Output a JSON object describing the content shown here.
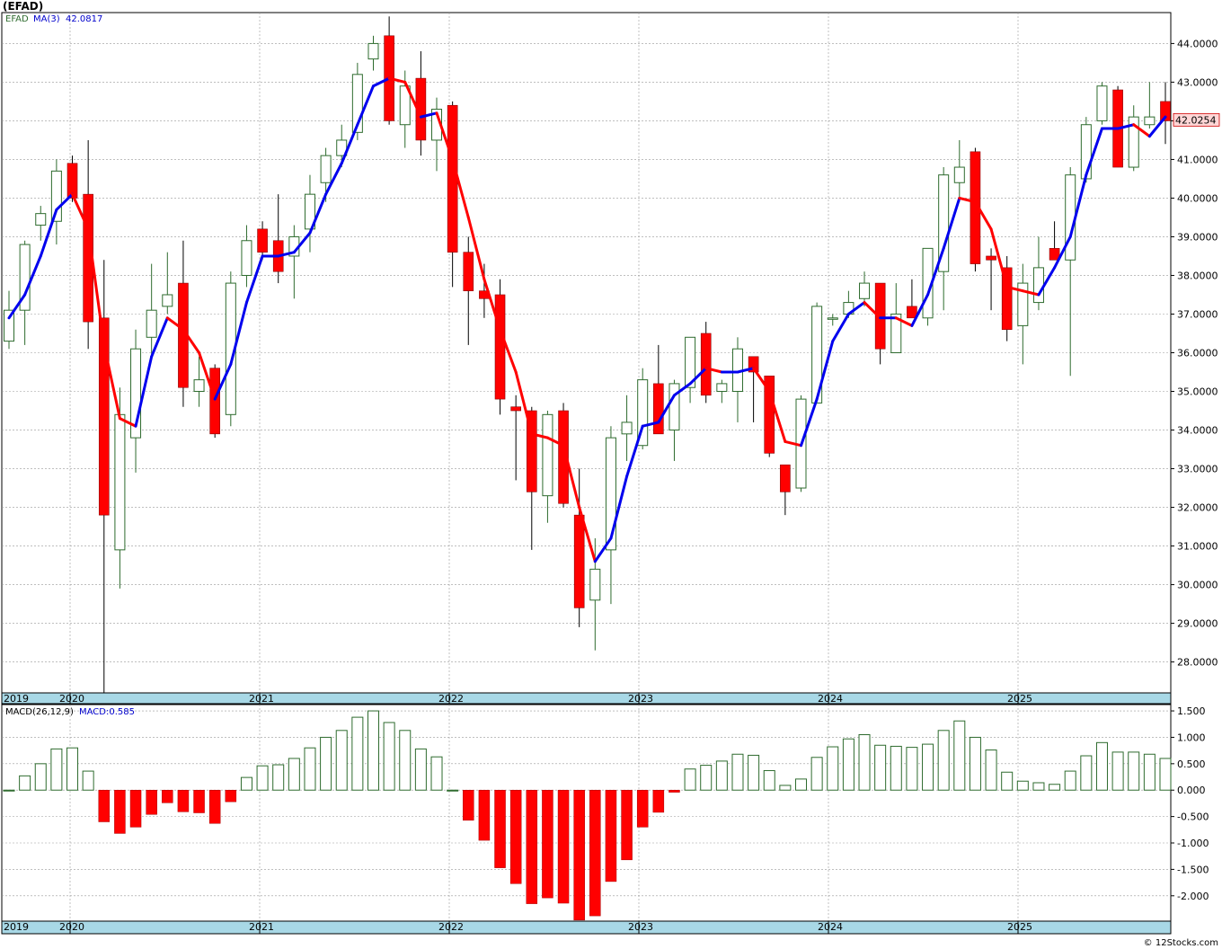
{
  "title": "(EFAD)",
  "price_panel": {
    "symbol": "EFAD",
    "ma_label": "MA(3)",
    "ma_value": "42.0817",
    "last_price": "42.0254"
  },
  "macd_panel": {
    "label": "MACD(26,12,9)",
    "value_label": "MACD:0.585"
  },
  "watermark": "© 12Stocks.com",
  "colors": {
    "up_candle_border": "#2e6b2e",
    "down_candle_fill": "#ff0000",
    "ma_rising": "#0000ee",
    "ma_falling": "#ff0000",
    "axis_band": "#a8d8e6",
    "grid": "#999999",
    "price_badge_bg": "#ffd6d6",
    "price_badge_text": "#cc0000"
  },
  "chart_data": [
    {
      "type": "candlestick",
      "ylim": [
        27.2,
        44.8
      ],
      "yticks": [
        {
          "value": 28,
          "label": "28.0000"
        },
        {
          "value": 29,
          "label": "29.0000"
        },
        {
          "value": 30,
          "label": "30.0000"
        },
        {
          "value": 31,
          "label": "31.0000"
        },
        {
          "value": 32,
          "label": "32.0000"
        },
        {
          "value": 33,
          "label": "33.0000"
        },
        {
          "value": 34,
          "label": "34.0000"
        },
        {
          "value": 35,
          "label": "35.0000"
        },
        {
          "value": 36,
          "label": "36.0000"
        },
        {
          "value": 37,
          "label": "37.0000"
        },
        {
          "value": 38,
          "label": "38.0000"
        },
        {
          "value": 39,
          "label": "39.0000"
        },
        {
          "value": 40,
          "label": "40.0000"
        },
        {
          "value": 41,
          "label": "41.0000"
        },
        {
          "value": 42,
          "label": "42.0000"
        },
        {
          "value": 43,
          "label": "43.0000"
        },
        {
          "value": 44,
          "label": "44.0000"
        }
      ],
      "years": [
        "2019",
        "2020",
        "2021",
        "2022",
        "2023",
        "2024",
        "2025"
      ],
      "candles": [
        {
          "o": 36.3,
          "h": 37.6,
          "l": 36.1,
          "c": 37.1
        },
        {
          "o": 37.1,
          "h": 38.9,
          "l": 36.2,
          "c": 38.8
        },
        {
          "o": 39.3,
          "h": 39.8,
          "l": 38.9,
          "c": 39.6
        },
        {
          "o": 39.4,
          "h": 41.0,
          "l": 38.8,
          "c": 40.7
        },
        {
          "o": 40.9,
          "h": 41.1,
          "l": 39.9,
          "c": 40.0
        },
        {
          "o": 40.1,
          "h": 41.5,
          "l": 36.1,
          "c": 36.8
        },
        {
          "o": 36.9,
          "h": 38.4,
          "l": 26.6,
          "c": 31.8
        },
        {
          "o": 30.9,
          "h": 35.1,
          "l": 29.9,
          "c": 34.4
        },
        {
          "o": 33.8,
          "h": 36.6,
          "l": 32.9,
          "c": 36.1
        },
        {
          "o": 36.4,
          "h": 38.3,
          "l": 35.9,
          "c": 37.1
        },
        {
          "o": 37.2,
          "h": 38.6,
          "l": 37.0,
          "c": 37.5
        },
        {
          "o": 37.8,
          "h": 38.9,
          "l": 34.6,
          "c": 35.1
        },
        {
          "o": 35.0,
          "h": 35.9,
          "l": 34.6,
          "c": 35.3
        },
        {
          "o": 35.6,
          "h": 35.7,
          "l": 33.8,
          "c": 33.9
        },
        {
          "o": 34.4,
          "h": 38.1,
          "l": 34.1,
          "c": 37.8
        },
        {
          "o": 38.0,
          "h": 39.3,
          "l": 37.7,
          "c": 38.9
        },
        {
          "o": 39.2,
          "h": 39.4,
          "l": 38.4,
          "c": 38.6
        },
        {
          "o": 38.9,
          "h": 40.1,
          "l": 37.8,
          "c": 38.1
        },
        {
          "o": 38.5,
          "h": 39.3,
          "l": 37.4,
          "c": 39.0
        },
        {
          "o": 39.2,
          "h": 40.6,
          "l": 38.6,
          "c": 40.1
        },
        {
          "o": 40.4,
          "h": 41.3,
          "l": 39.9,
          "c": 41.1
        },
        {
          "o": 41.1,
          "h": 41.9,
          "l": 40.8,
          "c": 41.5
        },
        {
          "o": 41.7,
          "h": 43.5,
          "l": 41.5,
          "c": 43.2
        },
        {
          "o": 43.6,
          "h": 44.2,
          "l": 43.3,
          "c": 44.0
        },
        {
          "o": 44.2,
          "h": 44.7,
          "l": 41.9,
          "c": 42.0
        },
        {
          "o": 41.9,
          "h": 43.3,
          "l": 41.3,
          "c": 42.9
        },
        {
          "o": 43.1,
          "h": 43.8,
          "l": 41.1,
          "c": 41.5
        },
        {
          "o": 41.5,
          "h": 42.6,
          "l": 40.7,
          "c": 42.3
        },
        {
          "o": 42.4,
          "h": 42.5,
          "l": 37.7,
          "c": 38.6
        },
        {
          "o": 38.6,
          "h": 39.0,
          "l": 36.2,
          "c": 37.6
        },
        {
          "o": 37.6,
          "h": 38.3,
          "l": 36.9,
          "c": 37.4
        },
        {
          "o": 37.5,
          "h": 37.9,
          "l": 34.4,
          "c": 34.8
        },
        {
          "o": 34.6,
          "h": 34.9,
          "l": 32.7,
          "c": 34.5
        },
        {
          "o": 34.5,
          "h": 34.6,
          "l": 30.9,
          "c": 32.4
        },
        {
          "o": 32.3,
          "h": 34.5,
          "l": 31.6,
          "c": 34.4
        },
        {
          "o": 34.5,
          "h": 34.7,
          "l": 32.0,
          "c": 32.1
        },
        {
          "o": 31.8,
          "h": 33.0,
          "l": 28.9,
          "c": 29.4
        },
        {
          "o": 29.6,
          "h": 31.2,
          "l": 28.3,
          "c": 30.4
        },
        {
          "o": 30.9,
          "h": 34.1,
          "l": 29.5,
          "c": 33.8
        },
        {
          "o": 33.9,
          "h": 34.9,
          "l": 33.2,
          "c": 34.2
        },
        {
          "o": 33.6,
          "h": 35.6,
          "l": 33.5,
          "c": 35.3
        },
        {
          "o": 35.2,
          "h": 36.2,
          "l": 33.9,
          "c": 33.9
        },
        {
          "o": 34.0,
          "h": 35.3,
          "l": 33.2,
          "c": 35.2
        },
        {
          "o": 35.1,
          "h": 36.4,
          "l": 34.7,
          "c": 36.4
        },
        {
          "o": 36.5,
          "h": 36.8,
          "l": 34.7,
          "c": 34.9
        },
        {
          "o": 35.0,
          "h": 35.3,
          "l": 34.7,
          "c": 35.2
        },
        {
          "o": 35.0,
          "h": 36.4,
          "l": 34.2,
          "c": 36.1
        },
        {
          "o": 35.9,
          "h": 35.9,
          "l": 34.2,
          "c": 35.5
        },
        {
          "o": 35.4,
          "h": 35.4,
          "l": 33.3,
          "c": 33.4
        },
        {
          "o": 33.1,
          "h": 33.1,
          "l": 31.8,
          "c": 32.4
        },
        {
          "o": 32.5,
          "h": 34.9,
          "l": 32.4,
          "c": 34.8
        },
        {
          "o": 34.7,
          "h": 37.3,
          "l": 34.7,
          "c": 37.2
        },
        {
          "o": 36.9,
          "h": 37.0,
          "l": 36.7,
          "c": 36.9
        },
        {
          "o": 37.0,
          "h": 37.6,
          "l": 36.9,
          "c": 37.3
        },
        {
          "o": 37.4,
          "h": 38.1,
          "l": 37.2,
          "c": 37.8
        },
        {
          "o": 37.8,
          "h": 37.8,
          "l": 35.7,
          "c": 36.1
        },
        {
          "o": 36.0,
          "h": 37.8,
          "l": 36.0,
          "c": 37.0
        },
        {
          "o": 37.2,
          "h": 37.9,
          "l": 36.9,
          "c": 36.9
        },
        {
          "o": 36.9,
          "h": 38.7,
          "l": 36.7,
          "c": 38.7
        },
        {
          "o": 38.1,
          "h": 40.8,
          "l": 37.1,
          "c": 40.6
        },
        {
          "o": 40.4,
          "h": 41.5,
          "l": 39.9,
          "c": 40.8
        },
        {
          "o": 41.2,
          "h": 41.3,
          "l": 38.1,
          "c": 38.3
        },
        {
          "o": 38.5,
          "h": 38.7,
          "l": 37.1,
          "c": 38.4
        },
        {
          "o": 38.2,
          "h": 38.5,
          "l": 36.3,
          "c": 36.6
        },
        {
          "o": 36.7,
          "h": 38.3,
          "l": 35.7,
          "c": 37.8
        },
        {
          "o": 37.3,
          "h": 39.0,
          "l": 37.1,
          "c": 38.2
        },
        {
          "o": 38.7,
          "h": 39.4,
          "l": 38.4,
          "c": 38.4
        },
        {
          "o": 38.4,
          "h": 40.8,
          "l": 35.4,
          "c": 40.6
        },
        {
          "o": 40.5,
          "h": 42.1,
          "l": 40.4,
          "c": 41.9
        },
        {
          "o": 42.0,
          "h": 43.0,
          "l": 41.9,
          "c": 42.9
        },
        {
          "o": 42.8,
          "h": 42.9,
          "l": 40.8,
          "c": 40.8
        },
        {
          "o": 40.8,
          "h": 42.4,
          "l": 40.7,
          "c": 42.1
        },
        {
          "o": 41.9,
          "h": 43.0,
          "l": 41.8,
          "c": 42.1
        },
        {
          "o": 42.5,
          "h": 43.0,
          "l": 41.4,
          "c": 42.0
        }
      ],
      "ma": [
        36.9,
        37.5,
        38.5,
        39.7,
        40.1,
        39.2,
        36.2,
        34.3,
        34.1,
        35.9,
        36.9,
        36.6,
        36.0,
        34.8,
        35.7,
        37.3,
        38.5,
        38.5,
        38.6,
        39.1,
        40.1,
        40.9,
        41.9,
        42.9,
        43.1,
        43.0,
        42.1,
        42.2,
        41.0,
        39.5,
        37.9,
        36.6,
        35.5,
        33.9,
        33.8,
        33.6,
        32.0,
        30.6,
        31.2,
        32.8,
        34.1,
        34.2,
        34.9,
        35.2,
        35.6,
        35.5,
        35.5,
        35.6,
        35.0,
        33.7,
        33.6,
        34.8,
        36.3,
        37.0,
        37.3,
        36.9,
        36.9,
        36.7,
        37.5,
        38.7,
        40.0,
        39.9,
        39.2,
        37.7,
        37.6,
        37.5,
        38.2,
        39.0,
        40.6,
        41.8,
        41.8,
        41.9,
        41.6,
        42.1
      ],
      "last_price": 42.0254
    },
    {
      "type": "bar",
      "title": "MACD(26,12,9)",
      "ylim": [
        -2.48,
        1.62
      ],
      "yticks": [
        {
          "value": 1.5,
          "label": "1.500"
        },
        {
          "value": 1.0,
          "label": "1.000"
        },
        {
          "value": 0.5,
          "label": "0.500"
        },
        {
          "value": 0.0,
          "label": "0.000"
        },
        {
          "value": -0.5,
          "label": "-0.500"
        },
        {
          "value": -1.0,
          "label": "-1.000"
        },
        {
          "value": -1.5,
          "label": "-1.500"
        },
        {
          "value": -2.0,
          "label": "-2.000"
        }
      ],
      "years": [
        "2019",
        "2020",
        "2021",
        "2022",
        "2023",
        "2024",
        "2025"
      ],
      "values": [
        0.0,
        0.27,
        0.5,
        0.78,
        0.8,
        0.36,
        -0.6,
        -0.82,
        -0.7,
        -0.46,
        -0.24,
        -0.41,
        -0.43,
        -0.63,
        -0.22,
        0.24,
        0.46,
        0.48,
        0.6,
        0.8,
        1.0,
        1.13,
        1.38,
        1.5,
        1.28,
        1.13,
        0.78,
        0.63,
        0.0,
        -0.57,
        -0.95,
        -1.47,
        -1.77,
        -2.15,
        -2.04,
        -2.14,
        -2.46,
        -2.38,
        -1.73,
        -1.32,
        -0.7,
        -0.42,
        -0.04,
        0.4,
        0.47,
        0.55,
        0.68,
        0.66,
        0.37,
        0.09,
        0.21,
        0.62,
        0.82,
        0.97,
        1.05,
        0.85,
        0.83,
        0.81,
        0.87,
        1.13,
        1.31,
        1.0,
        0.76,
        0.34,
        0.17,
        0.14,
        0.11,
        0.36,
        0.65,
        0.9,
        0.72,
        0.72,
        0.68,
        0.6
      ],
      "last_value": 0.585
    }
  ]
}
